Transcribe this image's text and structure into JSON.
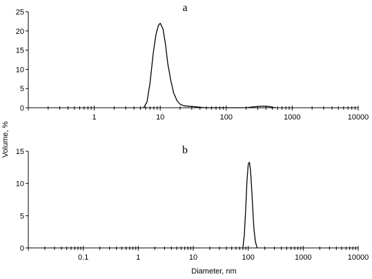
{
  "y_axis_title": "Volume, %",
  "x_axis_title": "Diameter, nm",
  "chart_data": [
    {
      "type": "line",
      "panel_label": "a",
      "xscale": "log",
      "xlim": [
        0.1,
        10000
      ],
      "ylim": [
        0,
        25
      ],
      "x_tick_labels": [
        "1",
        "10",
        "100",
        "1000",
        "10000"
      ],
      "y_tick_labels": [
        "0",
        "5",
        "10",
        "15",
        "20",
        "25"
      ],
      "y_ticks": [
        0,
        5,
        10,
        15,
        20,
        25
      ],
      "x_ticks_labeled": [
        1,
        10,
        100,
        1000,
        10000
      ],
      "grid": false,
      "series": [
        {
          "x": [
            5.6,
            6.3,
            7.0,
            7.8,
            8.6,
            9.4,
            10.0,
            11.0,
            12.0,
            13.0,
            14.5,
            16.0,
            18.0,
            20.0,
            23.0,
            27.0,
            32.0,
            40.0,
            50.0,
            200.0,
            250.0,
            300.0,
            350.0,
            400.0,
            450.0,
            500.0,
            560.0
          ],
          "y": [
            0,
            1.5,
            6.5,
            14.0,
            19.0,
            21.5,
            22.0,
            20.5,
            16.5,
            11.5,
            7.0,
            3.8,
            1.8,
            0.9,
            0.5,
            0.4,
            0.3,
            0.1,
            0,
            0,
            0.2,
            0.35,
            0.4,
            0.4,
            0.3,
            0.1,
            0
          ]
        }
      ]
    },
    {
      "type": "line",
      "panel_label": "b",
      "xscale": "log",
      "xlim": [
        0.01,
        10000
      ],
      "ylim": [
        0,
        15
      ],
      "x_tick_labels": [
        "0.1",
        "1",
        "10",
        "100",
        "1000",
        "10000"
      ],
      "y_tick_labels": [
        "0",
        "5",
        "10",
        "15"
      ],
      "y_ticks": [
        0,
        5,
        10,
        15
      ],
      "x_ticks_labeled": [
        0.1,
        1,
        10,
        100,
        1000,
        10000
      ],
      "grid": false,
      "series": [
        {
          "x": [
            80,
            85,
            90,
            95,
            100,
            105,
            110,
            115,
            120,
            127,
            135,
            145
          ],
          "y": [
            0,
            2.0,
            6.0,
            10.5,
            13.0,
            13.3,
            12.0,
            9.5,
            6.5,
            3.0,
            1.0,
            0
          ]
        }
      ]
    }
  ]
}
